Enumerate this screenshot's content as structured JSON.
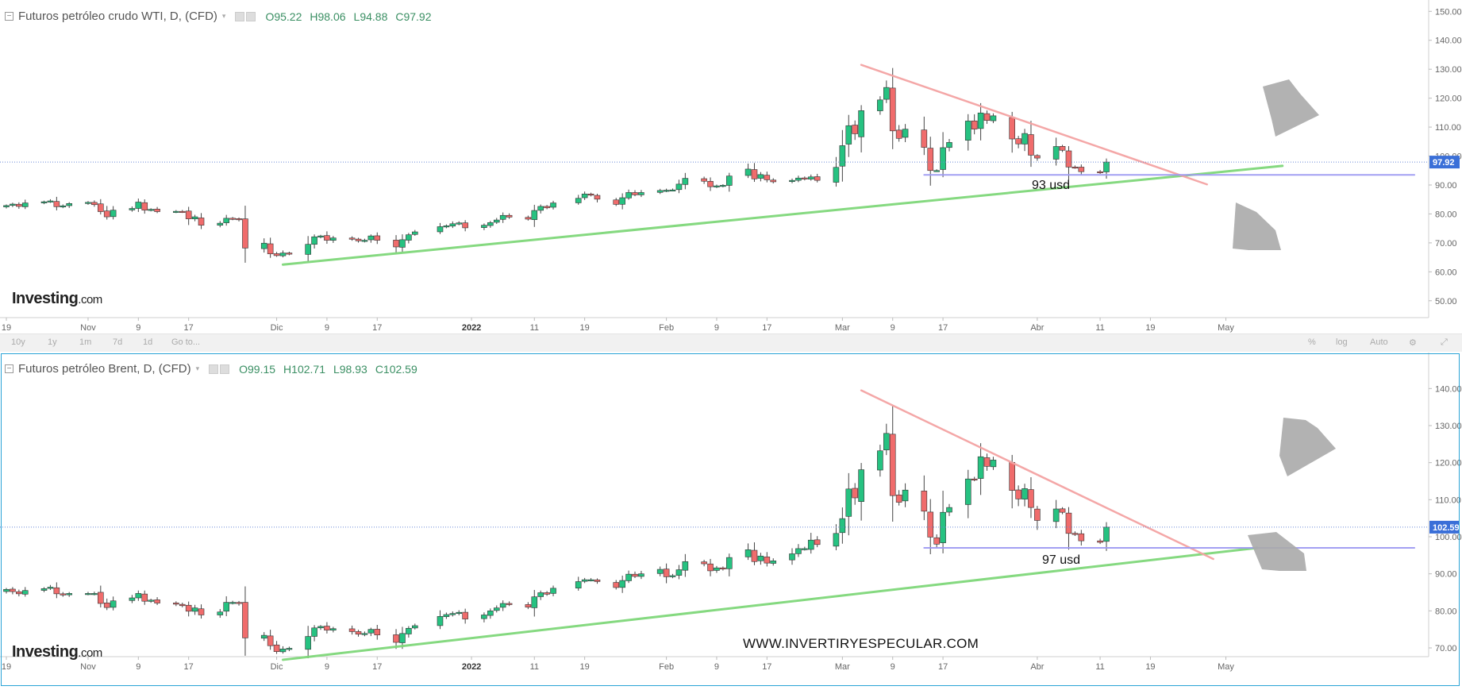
{
  "chart_data": [
    {
      "type": "candlestick",
      "title": "Futuros petróleo crudo WTI, D, (CFD)",
      "ohlc": {
        "open": "O95.22",
        "high": "H98.06",
        "low": "L94.88",
        "close": "C97.92"
      },
      "last_price_label": "97.92",
      "ylim": [
        45,
        152
      ],
      "y_ticks": [
        "150.00",
        "140.00",
        "130.00",
        "120.00",
        "110.00",
        "100.00",
        "90.00",
        "80.00",
        "70.00",
        "60.00",
        "50.00"
      ],
      "x_ticks": [
        "19",
        "Nov",
        "9",
        "17",
        "Dic",
        "9",
        "17",
        "2022",
        "11",
        "19",
        "Feb",
        "9",
        "17",
        "Mar",
        "9",
        "17",
        "Abr",
        "11",
        "19",
        "May"
      ],
      "annotation": "93 usd",
      "support_level": 93.5,
      "grid": false,
      "dates": [
        "2021-10-19",
        "2021-10-20",
        "2021-10-21",
        "2021-10-22",
        "2021-10-25",
        "2021-10-26",
        "2021-10-27",
        "2021-10-28",
        "2021-10-29",
        "2021-11-01",
        "2021-11-02",
        "2021-11-03",
        "2021-11-04",
        "2021-11-05",
        "2021-11-08",
        "2021-11-09",
        "2021-11-10",
        "2021-11-11",
        "2021-11-12",
        "2021-11-15",
        "2021-11-16",
        "2021-11-17",
        "2021-11-18",
        "2021-11-19",
        "2021-11-22",
        "2021-11-23",
        "2021-11-24",
        "2021-11-25",
        "2021-11-26",
        "2021-11-29",
        "2021-11-30",
        "2021-12-01",
        "2021-12-02",
        "2021-12-03",
        "2021-12-06",
        "2021-12-07",
        "2021-12-08",
        "2021-12-09",
        "2021-12-10",
        "2021-12-13",
        "2021-12-14",
        "2021-12-15",
        "2021-12-16",
        "2021-12-17",
        "2021-12-20",
        "2021-12-21",
        "2021-12-22",
        "2021-12-23",
        "2021-12-27",
        "2021-12-28",
        "2021-12-29",
        "2021-12-30",
        "2021-12-31",
        "2022-01-03",
        "2022-01-04",
        "2022-01-05",
        "2022-01-06",
        "2022-01-07",
        "2022-01-10",
        "2022-01-11",
        "2022-01-12",
        "2022-01-13",
        "2022-01-14",
        "2022-01-18",
        "2022-01-19",
        "2022-01-20",
        "2022-01-21",
        "2022-01-24",
        "2022-01-25",
        "2022-01-26",
        "2022-01-27",
        "2022-01-28",
        "2022-01-31",
        "2022-02-01",
        "2022-02-02",
        "2022-02-03",
        "2022-02-04",
        "2022-02-07",
        "2022-02-08",
        "2022-02-09",
        "2022-02-10",
        "2022-02-11",
        "2022-02-14",
        "2022-02-15",
        "2022-02-16",
        "2022-02-17",
        "2022-02-18",
        "2022-02-21",
        "2022-02-22",
        "2022-02-23",
        "2022-02-24",
        "2022-02-25",
        "2022-02-28",
        "2022-03-01",
        "2022-03-02",
        "2022-03-03",
        "2022-03-04",
        "2022-03-07",
        "2022-03-08",
        "2022-03-09",
        "2022-03-10",
        "2022-03-11",
        "2022-03-14",
        "2022-03-15",
        "2022-03-16",
        "2022-03-17",
        "2022-03-18",
        "2022-03-21",
        "2022-03-22",
        "2022-03-23",
        "2022-03-24",
        "2022-03-25",
        "2022-03-28",
        "2022-03-29",
        "2022-03-30",
        "2022-03-31",
        "2022-04-01",
        "2022-04-04",
        "2022-04-05",
        "2022-04-06",
        "2022-04-07",
        "2022-04-08",
        "2022-04-11",
        "2022-04-12"
      ],
      "close": [
        82.9,
        83.4,
        82.6,
        83.8,
        84.2,
        84.5,
        82.5,
        82.8,
        83.6,
        84.0,
        83.2,
        80.8,
        79.0,
        81.3,
        81.9,
        84.1,
        81.3,
        81.6,
        80.8,
        80.9,
        80.8,
        78.3,
        79.0,
        76.1,
        76.8,
        78.5,
        78.4,
        78.0,
        68.2,
        69.9,
        66.2,
        65.6,
        66.5,
        66.3,
        69.5,
        72.1,
        72.4,
        70.9,
        71.7,
        71.3,
        70.7,
        70.9,
        72.4,
        70.9,
        68.6,
        71.1,
        72.8,
        73.8,
        75.6,
        75.9,
        76.6,
        76.9,
        75.2,
        76.1,
        77.0,
        77.9,
        79.5,
        78.9,
        78.2,
        81.2,
        82.6,
        82.1,
        83.8,
        85.4,
        86.9,
        86.5,
        85.1,
        83.3,
        85.6,
        87.4,
        86.6,
        87.4,
        88.1,
        88.2,
        88.3,
        90.3,
        92.3,
        91.3,
        89.4,
        89.7,
        89.9,
        93.1,
        95.5,
        92.1,
        93.6,
        91.8,
        91.1,
        91.6,
        92.4,
        92.1,
        92.8,
        91.6,
        96.1,
        103.6,
        110.5,
        107.7,
        115.7,
        119.4,
        123.7,
        108.7,
        106.1,
        109.3,
        103.0,
        95.0,
        95.0,
        102.9,
        104.7,
        112.1,
        109.3,
        114.9,
        112.3,
        113.9,
        105.9,
        104.2,
        107.8,
        100.3,
        99.3,
        103.3,
        102.0,
        96.2,
        96.0,
        94.6,
        94.3,
        97.92
      ],
      "prev_close": 82.4,
      "trendlines": [
        {
          "name": "uptrend-support",
          "color": "#7fd77a",
          "points": [
            [
              "2021-12-02",
              62.5
            ],
            [
              "2022-05-10",
              96.6
            ]
          ]
        },
        {
          "name": "downtrend-resistance",
          "color": "#f4a3a3",
          "points": [
            [
              "2022-03-04",
              131.5
            ],
            [
              "2022-04-28",
              90.2
            ]
          ]
        },
        {
          "name": "horizontal-support",
          "color": "#9f9bf2",
          "points": [
            [
              "2022-03-14",
              93.5
            ],
            [
              "2022-05-31",
              93.5
            ]
          ]
        }
      ]
    },
    {
      "type": "candlestick",
      "title": "Futuros petróleo Brent, D, (CFD)",
      "ohlc": {
        "open": "O99.15",
        "high": "H102.71",
        "low": "L98.93",
        "close": "C102.59"
      },
      "last_price_label": "102.59",
      "ylim": [
        64,
        148
      ],
      "y_ticks": [
        "140.00",
        "130.00",
        "120.00",
        "110.00",
        "100.00",
        "90.00",
        "80.00",
        "70.00"
      ],
      "x_ticks": [
        "19",
        "Nov",
        "9",
        "17",
        "Dic",
        "9",
        "17",
        "2022",
        "11",
        "19",
        "Feb",
        "9",
        "17",
        "Mar",
        "9",
        "17",
        "Abr",
        "11",
        "19",
        "May"
      ],
      "annotation": "97 usd",
      "support_level": 97.0,
      "grid": false,
      "dates": [
        "2021-10-19",
        "2021-10-20",
        "2021-10-21",
        "2021-10-22",
        "2021-10-25",
        "2021-10-26",
        "2021-10-27",
        "2021-10-28",
        "2021-10-29",
        "2021-11-01",
        "2021-11-02",
        "2021-11-03",
        "2021-11-04",
        "2021-11-05",
        "2021-11-08",
        "2021-11-09",
        "2021-11-10",
        "2021-11-11",
        "2021-11-12",
        "2021-11-15",
        "2021-11-16",
        "2021-11-17",
        "2021-11-18",
        "2021-11-19",
        "2021-11-22",
        "2021-11-23",
        "2021-11-24",
        "2021-11-25",
        "2021-11-26",
        "2021-11-29",
        "2021-11-30",
        "2021-12-01",
        "2021-12-02",
        "2021-12-03",
        "2021-12-06",
        "2021-12-07",
        "2021-12-08",
        "2021-12-09",
        "2021-12-10",
        "2021-12-13",
        "2021-12-14",
        "2021-12-15",
        "2021-12-16",
        "2021-12-17",
        "2021-12-20",
        "2021-12-21",
        "2021-12-22",
        "2021-12-23",
        "2021-12-27",
        "2021-12-28",
        "2021-12-29",
        "2021-12-30",
        "2021-12-31",
        "2022-01-03",
        "2022-01-04",
        "2022-01-05",
        "2022-01-06",
        "2022-01-07",
        "2022-01-10",
        "2022-01-11",
        "2022-01-12",
        "2022-01-13",
        "2022-01-14",
        "2022-01-18",
        "2022-01-19",
        "2022-01-20",
        "2022-01-21",
        "2022-01-24",
        "2022-01-25",
        "2022-01-26",
        "2022-01-27",
        "2022-01-28",
        "2022-01-31",
        "2022-02-01",
        "2022-02-02",
        "2022-02-03",
        "2022-02-04",
        "2022-02-07",
        "2022-02-08",
        "2022-02-09",
        "2022-02-10",
        "2022-02-11",
        "2022-02-14",
        "2022-02-15",
        "2022-02-16",
        "2022-02-17",
        "2022-02-18",
        "2022-02-21",
        "2022-02-22",
        "2022-02-23",
        "2022-02-24",
        "2022-02-25",
        "2022-02-28",
        "2022-03-01",
        "2022-03-02",
        "2022-03-03",
        "2022-03-04",
        "2022-03-07",
        "2022-03-08",
        "2022-03-09",
        "2022-03-10",
        "2022-03-11",
        "2022-03-14",
        "2022-03-15",
        "2022-03-16",
        "2022-03-17",
        "2022-03-18",
        "2022-03-21",
        "2022-03-22",
        "2022-03-23",
        "2022-03-24",
        "2022-03-25",
        "2022-03-28",
        "2022-03-29",
        "2022-03-30",
        "2022-03-31",
        "2022-04-01",
        "2022-04-04",
        "2022-04-05",
        "2022-04-06",
        "2022-04-07",
        "2022-04-08",
        "2022-04-11",
        "2022-04-12"
      ],
      "close": [
        85.8,
        85.2,
        84.6,
        85.5,
        86.0,
        86.4,
        84.6,
        84.3,
        84.7,
        84.7,
        84.7,
        82.0,
        80.9,
        82.7,
        83.5,
        84.7,
        82.6,
        82.9,
        82.1,
        81.8,
        81.4,
        79.9,
        80.8,
        78.9,
        79.7,
        82.3,
        82.3,
        82.0,
        72.7,
        73.4,
        70.6,
        69.0,
        69.7,
        69.9,
        73.1,
        75.4,
        75.8,
        74.8,
        75.2,
        74.4,
        73.7,
        73.9,
        75.0,
        73.5,
        71.5,
        73.9,
        75.3,
        76.0,
        78.5,
        79.0,
        79.3,
        79.6,
        77.8,
        78.9,
        80.0,
        80.8,
        82.0,
        81.8,
        81.0,
        83.8,
        84.9,
        84.5,
        86.1,
        87.9,
        88.4,
        88.4,
        87.9,
        86.3,
        88.2,
        89.9,
        89.3,
        90.0,
        91.2,
        89.2,
        89.5,
        91.1,
        93.3,
        92.7,
        90.8,
        91.6,
        91.4,
        94.4,
        96.5,
        93.3,
        94.8,
        92.9,
        93.5,
        95.4,
        96.8,
        96.8,
        99.1,
        97.9,
        100.9,
        104.9,
        112.9,
        110.5,
        118.1,
        123.2,
        127.9,
        111.1,
        109.3,
        112.6,
        106.9,
        99.9,
        98.0,
        106.6,
        107.9,
        115.6,
        115.5,
        121.6,
        119.0,
        120.7,
        112.5,
        110.2,
        113.0,
        107.9,
        104.4,
        107.5,
        106.6,
        100.9,
        100.6,
        98.9,
        98.5,
        102.59
      ],
      "prev_close": 85.2,
      "trendlines": [
        {
          "name": "uptrend-support",
          "color": "#7fd77a",
          "points": [
            [
              "2021-12-02",
              66.8
            ],
            [
              "2022-05-06",
              97.0
            ]
          ]
        },
        {
          "name": "downtrend-resistance",
          "color": "#f4a3a3",
          "points": [
            [
              "2022-03-04",
              139.5
            ],
            [
              "2022-04-29",
              94.0
            ]
          ]
        },
        {
          "name": "horizontal-support",
          "color": "#9f9bf2",
          "points": [
            [
              "2022-03-14",
              97.0
            ],
            [
              "2022-05-31",
              97.0
            ]
          ]
        }
      ]
    }
  ],
  "logo": {
    "brand": "Investing",
    "suffix": ".com"
  },
  "toolbar": {
    "items": [
      "10y",
      "1y",
      "1m",
      "7d",
      "1d",
      "Go to...",
      "%",
      "log",
      "Auto"
    ]
  },
  "watermark": "WWW.INVERTIRYESPECULAR.COM",
  "colors": {
    "up": "#26c281",
    "down": "#f06c6c",
    "price_tag": "#3a6fd8",
    "price_line": "#6a89d8",
    "resistance": "#f4a3a3",
    "support": "#7fd77a",
    "horizontal": "#9f9bf2",
    "arrow": "#aaaaaa"
  }
}
